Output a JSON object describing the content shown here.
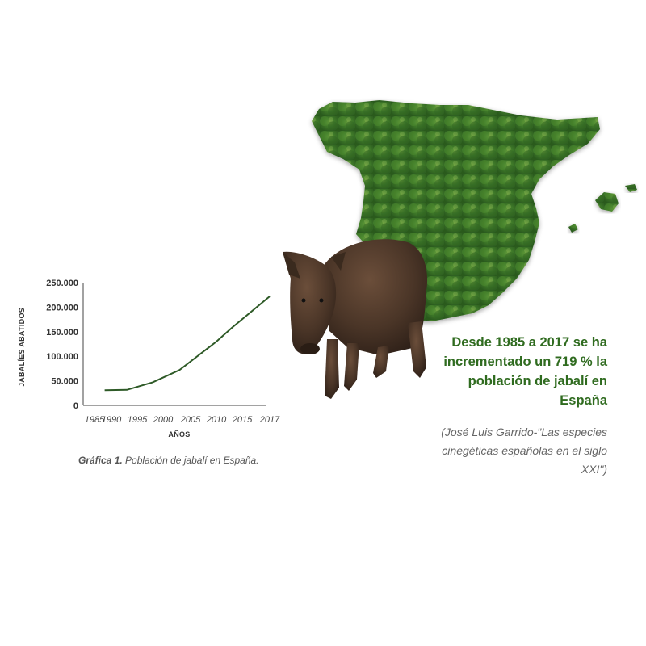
{
  "chart_data": {
    "type": "line",
    "title": "",
    "xlabel": "AÑOS",
    "ylabel": "JABALÍES ABATIDOS",
    "x_ticks": [
      "1985",
      "1990",
      "1995",
      "2000",
      "2005",
      "2010",
      "2015",
      "2017"
    ],
    "y_ticks": [
      "250.000",
      "200.000",
      "150.000",
      "100.000",
      "50.000",
      "0"
    ],
    "ylim": [
      0,
      250000
    ],
    "grid": false,
    "series": [
      {
        "values": [
          {
            "x": 1988,
            "y": 31000
          },
          {
            "x": 1993,
            "y": 31500
          },
          {
            "x": 1998,
            "y": 47000
          },
          {
            "x": 2003,
            "y": 72000
          },
          {
            "x": 2010,
            "y": 130000
          },
          {
            "x": 2013,
            "y": 158000
          },
          {
            "x": 2017,
            "y": 222000
          }
        ],
        "color": "#2e5a27"
      }
    ]
  },
  "caption": {
    "label": "Gráfica 1.",
    "text": " Población de jabalí en España."
  },
  "headline": "Desde 1985 a 2017 se ha incrementado un 719 % la población de jabalí en España",
  "quote": "(José Luis Garrido-\"Las especies cinegéticas españolas en el siglo XXI\")",
  "colors": {
    "headline": "#2f6b1f",
    "forest": "#3f7a2a",
    "boar": "#4a3527"
  },
  "images": {
    "map": "spain-forest-map",
    "animal": "wild-boar"
  }
}
